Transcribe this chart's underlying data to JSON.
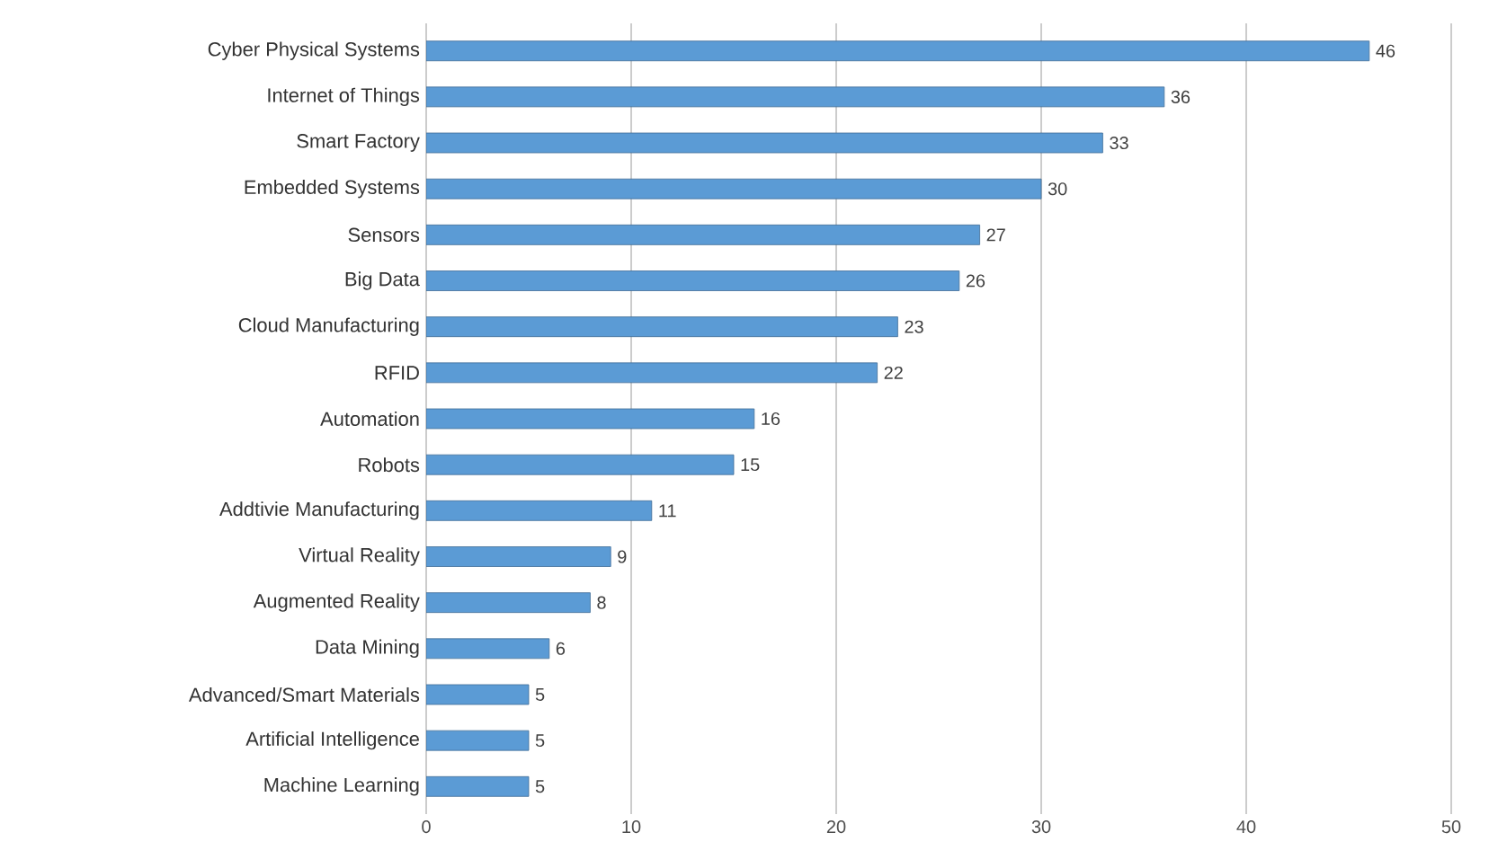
{
  "chart_data": {
    "type": "bar",
    "orientation": "horizontal",
    "categories": [
      "Cyber Physical Systems",
      "Internet of Things",
      "Smart Factory",
      "Embedded Systems",
      "Sensors",
      "Big Data",
      "Cloud Manufacturing",
      "RFID",
      "Automation",
      "Robots",
      "Addtivie Manufacturing",
      "Virtual Reality",
      "Augmented Reality",
      "Data Mining",
      "Advanced/Smart Materials",
      "Artificial Intelligence",
      "Machine Learning"
    ],
    "values": [
      46,
      36,
      33,
      30,
      27,
      26,
      23,
      22,
      16,
      15,
      11,
      9,
      8,
      6,
      5,
      5,
      5
    ],
    "color": "#5b9bd5",
    "xlim": [
      0,
      50
    ],
    "xticks": [
      0,
      10,
      20,
      30,
      40,
      50
    ],
    "grid": "x",
    "data_labels": true
  }
}
